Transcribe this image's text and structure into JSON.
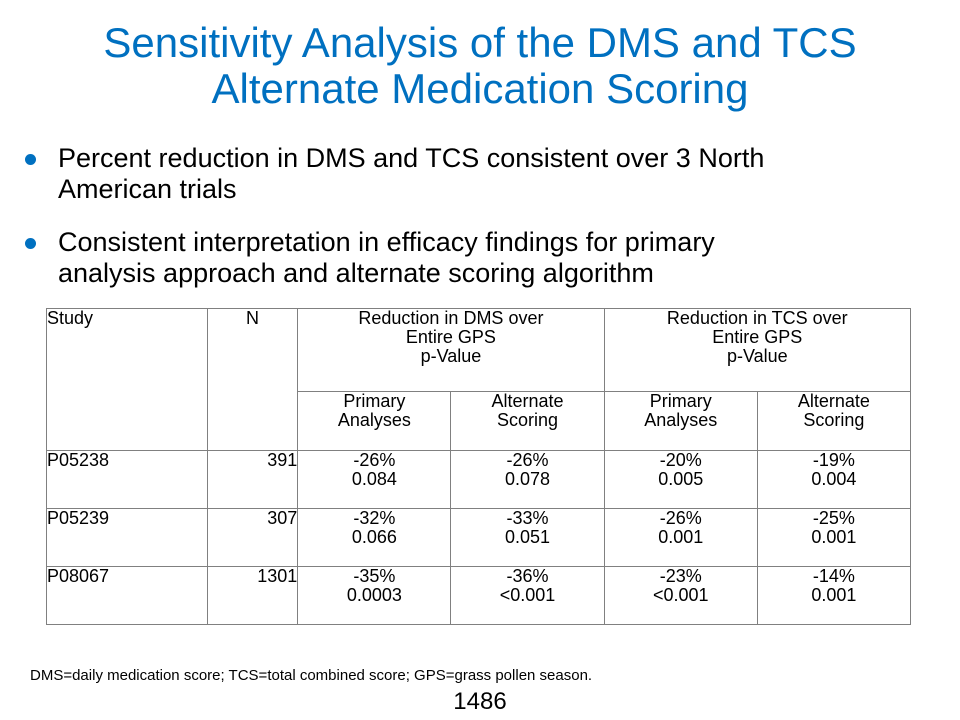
{
  "title": {
    "line1": "Sensitivity Analysis of the DMS and TCS",
    "line2": "Alternate Medication Scoring"
  },
  "bullets": [
    {
      "line1": "Percent reduction in DMS and TCS consistent over 3 North",
      "line2": "American trials"
    },
    {
      "line1": "Consistent interpretation in efficacy findings for primary",
      "line2": "analysis approach and alternate scoring algorithm"
    }
  ],
  "table": {
    "headers": {
      "study": "Study",
      "n": "N",
      "dms_group": {
        "line1": "Reduction in DMS over",
        "line2": "Entire GPS",
        "line3": "p-Value"
      },
      "tcs_group": {
        "line1": "Reduction in TCS over",
        "line2": "Entire GPS",
        "line3": "p-Value"
      },
      "sub": [
        {
          "line1": "Primary",
          "line2": "Analyses"
        },
        {
          "line1": "Alternate",
          "line2": "Scoring"
        },
        {
          "line1": "Primary",
          "line2": "Analyses"
        },
        {
          "line1": "Alternate",
          "line2": "Scoring"
        }
      ]
    },
    "rows": [
      {
        "study": "P05238",
        "n": "391",
        "dms_primary": {
          "pct": "-26%",
          "p": "0.084"
        },
        "dms_alternate": {
          "pct": "-26%",
          "p": "0.078"
        },
        "tcs_primary": {
          "pct": "-20%",
          "p": "0.005"
        },
        "tcs_alternate": {
          "pct": "-19%",
          "p": "0.004"
        }
      },
      {
        "study": "P05239",
        "n": "307",
        "dms_primary": {
          "pct": "-32%",
          "p": "0.066"
        },
        "dms_alternate": {
          "pct": "-33%",
          "p": "0.051"
        },
        "tcs_primary": {
          "pct": "-26%",
          "p": "0.001"
        },
        "tcs_alternate": {
          "pct": "-25%",
          "p": "0.001"
        }
      },
      {
        "study": "P08067",
        "n": "1301",
        "dms_primary": {
          "pct": "-35%",
          "p": "0.0003"
        },
        "dms_alternate": {
          "pct": "-36%",
          "p": "<0.001"
        },
        "tcs_primary": {
          "pct": "-23%",
          "p": "<0.001"
        },
        "tcs_alternate": {
          "pct": "-14%",
          "p": "0.001"
        }
      }
    ]
  },
  "footnote": "DMS=daily medication score; TCS=total combined score; GPS=grass pollen season.",
  "slide_number": "1486",
  "colors": {
    "accent": "#0070c0",
    "text": "#000000",
    "grid": "#808080"
  }
}
